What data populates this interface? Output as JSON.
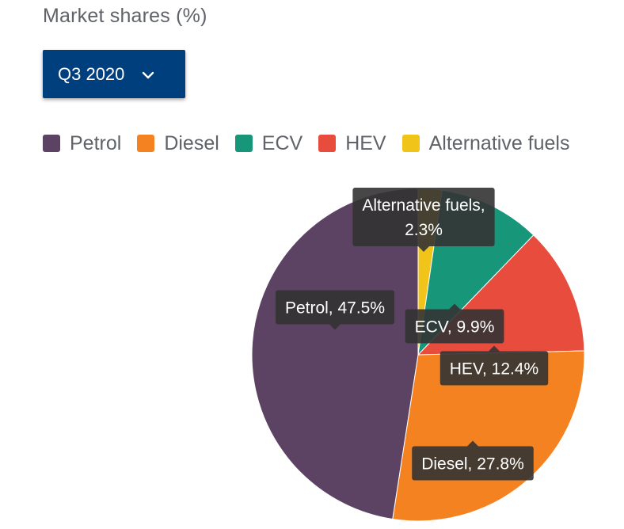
{
  "heading": "Market shares (%)",
  "period_select": {
    "value": "Q3 2020",
    "icon": "chevron-down-icon"
  },
  "colors": {
    "Petrol": "#5c4363",
    "Diesel": "#f58220",
    "ECV": "#17967a",
    "HEV": "#e84c3d",
    "Alternative fuels": "#f0c419",
    "tooltip_bg": "#333333",
    "tooltip_text": "#ffffff"
  },
  "legend": [
    {
      "label": "Petrol"
    },
    {
      "label": "Diesel"
    },
    {
      "label": "ECV"
    },
    {
      "label": "HEV"
    },
    {
      "label": "Alternative fuels"
    }
  ],
  "chart_data": {
    "type": "pie",
    "unit": "%",
    "slices": [
      {
        "label": "Alternative fuels",
        "value": 2.3,
        "tooltip": [
          "Alternative fuels,",
          "2.3%"
        ]
      },
      {
        "label": "ECV",
        "value": 9.9,
        "tooltip": [
          "ECV, 9.9%"
        ]
      },
      {
        "label": "HEV",
        "value": 12.4,
        "tooltip": [
          "HEV, 12.4%"
        ]
      },
      {
        "label": "Diesel",
        "value": 27.8,
        "tooltip": [
          "Diesel, 27.8%"
        ]
      },
      {
        "label": "Petrol",
        "value": 47.5,
        "tooltip": [
          "Petrol, 47.5%"
        ]
      }
    ],
    "legend_placement": "top"
  }
}
